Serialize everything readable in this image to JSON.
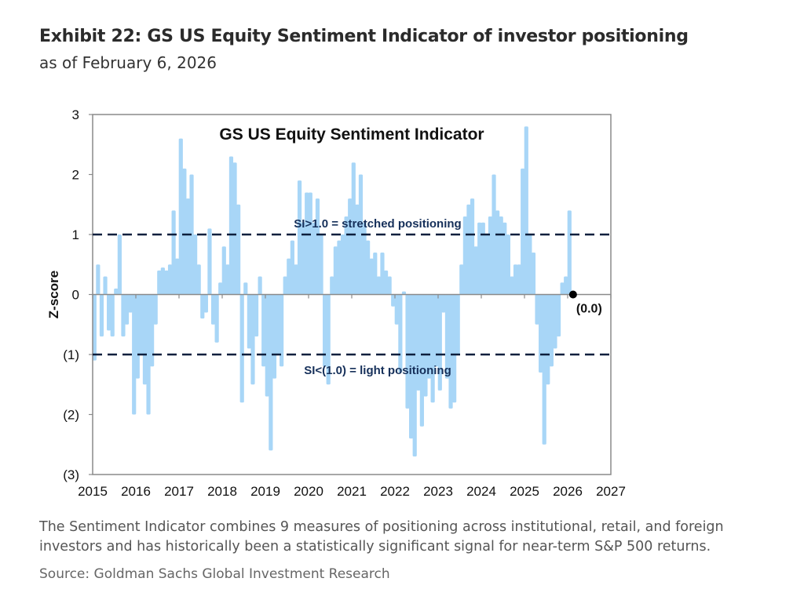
{
  "header": {
    "title": "Exhibit 22: GS US Equity Sentiment Indicator of investor positioning",
    "subtitle": "as of February 6, 2026"
  },
  "footer": {
    "caption_line1": "The Sentiment Indicator combines 9 measures of positioning across institutional, retail, and foreign",
    "caption_line2": "investors and has historically been a statistically significant signal for near-term S&P 500 returns.",
    "source": "Source: Goldman Sachs Global Investment Research"
  },
  "colors": {
    "bar": "#a8d6f7",
    "threshold": "#0d1f3d",
    "axis": "#8a8a8a"
  },
  "chart_data": {
    "type": "bar",
    "title": "GS US Equity  Sentiment Indicator",
    "xlabel": "",
    "ylabel": "Z-score",
    "xlim": [
      2015,
      2027
    ],
    "ylim": [
      -3,
      3
    ],
    "x_ticks": [
      "2015",
      "2016",
      "2017",
      "2018",
      "2019",
      "2020",
      "2021",
      "2022",
      "2023",
      "2024",
      "2025",
      "2026",
      "2027"
    ],
    "y_ticks": [
      {
        "v": 3,
        "label": "3"
      },
      {
        "v": 2,
        "label": "2"
      },
      {
        "v": 1,
        "label": "1"
      },
      {
        "v": 0,
        "label": "0"
      },
      {
        "v": -1,
        "label": "(1)"
      },
      {
        "v": -2,
        "label": "(2)"
      },
      {
        "v": -3,
        "label": "(3)"
      }
    ],
    "start_year": 2015,
    "frequency": "monthly",
    "values": [
      -1.1,
      0.5,
      -0.7,
      0.3,
      -0.6,
      -0.7,
      0.1,
      1.0,
      -0.7,
      -0.5,
      -0.3,
      -2.0,
      -1.4,
      -1.0,
      -1.5,
      -2.0,
      -1.2,
      -0.5,
      0.4,
      0.45,
      0.4,
      0.5,
      1.4,
      0.6,
      2.6,
      2.1,
      1.6,
      2.0,
      1.0,
      0.5,
      -0.4,
      -0.3,
      1.1,
      -0.5,
      -0.8,
      0.2,
      0.8,
      0.5,
      2.3,
      2.2,
      1.5,
      -1.8,
      0.2,
      -0.9,
      -1.5,
      -0.7,
      0.3,
      -1.2,
      -1.7,
      -2.6,
      -1.4,
      -1.0,
      -1.2,
      0.3,
      0.6,
      0.9,
      0.5,
      1.9,
      1.2,
      1.7,
      1.7,
      1.2,
      1.6,
      1.0,
      -1.2,
      -1.5,
      0.3,
      0.8,
      0.9,
      1.0,
      1.3,
      1.6,
      2.2,
      1.5,
      2.0,
      1.2,
      0.9,
      0.6,
      0.7,
      0.3,
      0.7,
      0.4,
      0.3,
      -0.2,
      -0.5,
      -1.3,
      0.05,
      -1.9,
      -2.4,
      -2.7,
      -1.6,
      -2.2,
      -1.7,
      -1.4,
      -1.8,
      -1.2,
      -1.6,
      -0.3,
      -1.4,
      -1.9,
      -1.8,
      -1.0,
      0.5,
      1.3,
      1.5,
      1.6,
      0.8,
      1.2,
      1.2,
      1.0,
      1.3,
      2.0,
      1.4,
      1.3,
      1.2,
      1.0,
      0.3,
      0.5,
      0.5,
      2.1,
      2.8,
      1.0,
      0.7,
      -0.5,
      -1.3,
      -2.5,
      -1.5,
      -1.2,
      -0.9,
      -0.7,
      0.2,
      0.3,
      1.4,
      0.0
    ],
    "thresholds": [
      {
        "v": 1,
        "label": "SI>1.0 = stretched positioning"
      },
      {
        "v": -1,
        "label": "SI<(1.0) = light positioning"
      }
    ],
    "latest": {
      "value": 0.0,
      "label": "(0.0)"
    },
    "grid": false,
    "legend": "none"
  }
}
